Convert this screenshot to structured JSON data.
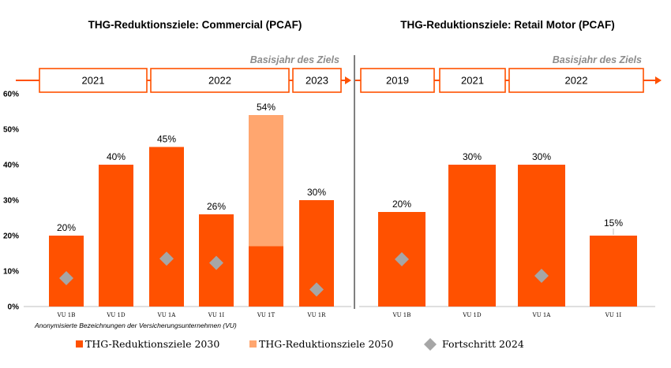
{
  "colors": {
    "target_2030": "#ff5100",
    "target_2050": "#ffa66f",
    "progress_2024": "#a6a6a6",
    "arrow": "#ff5100",
    "basis_text": "#8c8c8c",
    "axis": "#bfbfbf"
  },
  "note": "Anonymisierte Bezeichnungen der Versicherungsunternehmen (VU)",
  "legend": {
    "target_2030": "THG-Reduktionsziele 2030",
    "target_2050": "THG-Reduktionsziele 2050",
    "progress_2024": "Fortschritt 2024"
  },
  "chart_data": [
    {
      "type": "bar",
      "title": "THG-Reduktionsziele: Commercial (PCAF)",
      "basis_label": "Basisjahr des Ziels",
      "base_years": [
        {
          "label": "2021",
          "categories": [
            "VU 1B",
            "VU 1D"
          ]
        },
        {
          "label": "2022",
          "categories": [
            "VU 1A",
            "VU 1I",
            "VU 1T"
          ]
        },
        {
          "label": "2023",
          "categories": [
            "VU 1R"
          ]
        }
      ],
      "categories": [
        "VU 1B",
        "VU 1D",
        "VU 1A",
        "VU 1I",
        "VU 1T",
        "VU 1R"
      ],
      "series": [
        {
          "name": "THG-Reduktionsziele 2030",
          "values": [
            20,
            40,
            45,
            26,
            17,
            30
          ]
        },
        {
          "name": "THG-Reduktionsziele 2050",
          "values": [
            null,
            null,
            null,
            null,
            54,
            null
          ]
        },
        {
          "name": "Fortschritt 2024",
          "values": [
            8,
            null,
            13.5,
            12.3,
            null,
            4.8
          ]
        }
      ],
      "data_labels": [
        "20%",
        "40%",
        "45%",
        "26%",
        "54%",
        "30%"
      ],
      "yticks": [
        "0%",
        "10%",
        "20%",
        "30%",
        "40%",
        "50%",
        "60%"
      ],
      "ylim": [
        0,
        60
      ],
      "xlabel": "",
      "ylabel": ""
    },
    {
      "type": "bar",
      "title": "THG-Reduktionsziele: Retail Motor (PCAF)",
      "basis_label": "Basisjahr des Ziels",
      "base_years": [
        {
          "label": "2019",
          "categories": [
            "VU 1B"
          ]
        },
        {
          "label": "2021",
          "categories": [
            "VU 1D"
          ]
        },
        {
          "label": "2022",
          "categories": [
            "VU 1A",
            "VU 1I"
          ]
        }
      ],
      "categories": [
        "VU 1B",
        "VU 1D",
        "VU 1A",
        "VU 1I"
      ],
      "series": [
        {
          "name": "THG-Reduktionsziele 2030",
          "values": [
            20,
            30,
            30,
            15
          ]
        },
        {
          "name": "Fortschritt 2024",
          "values": [
            10,
            null,
            6.5,
            null
          ]
        }
      ],
      "data_labels": [
        "20%",
        "30%",
        "30%",
        "15%"
      ],
      "ylim": [
        0,
        50
      ],
      "xlabel": "",
      "ylabel": ""
    }
  ]
}
